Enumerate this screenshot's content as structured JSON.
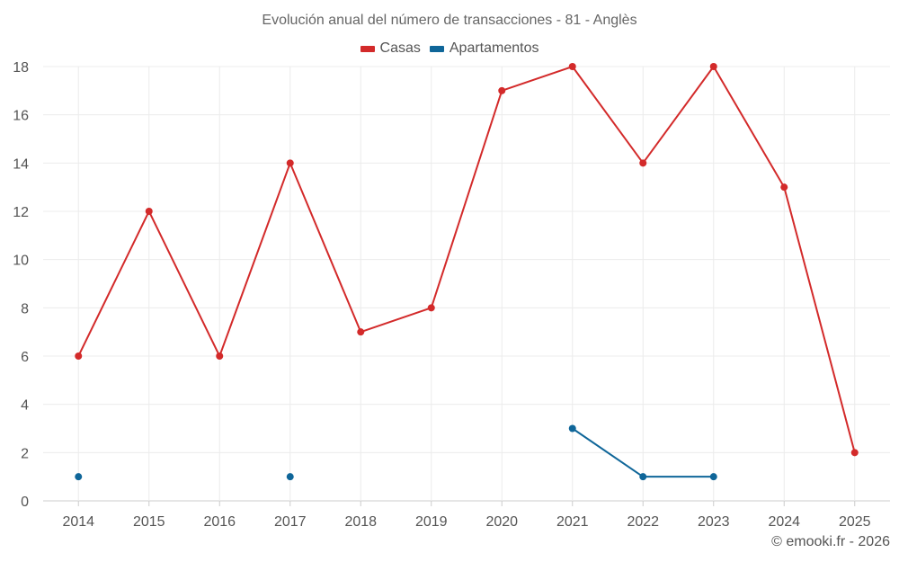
{
  "chart_data": {
    "type": "line",
    "title": "Evolución anual del número de transacciones - 81 - Anglès",
    "categories": [
      "2014",
      "2015",
      "2016",
      "2017",
      "2018",
      "2019",
      "2020",
      "2021",
      "2022",
      "2023",
      "2024",
      "2025"
    ],
    "series": [
      {
        "name": "Casas",
        "color": "#d32a2a",
        "values": [
          6,
          12,
          6,
          14,
          7,
          8,
          17,
          18,
          14,
          18,
          13,
          2
        ]
      },
      {
        "name": "Apartamentos",
        "color": "#0f6699",
        "values": [
          1,
          null,
          null,
          1,
          null,
          null,
          null,
          3,
          1,
          1,
          null,
          null
        ]
      }
    ],
    "ylim": [
      0,
      18
    ],
    "yticks": [
      0,
      2,
      4,
      6,
      8,
      10,
      12,
      14,
      16,
      18
    ],
    "grid": true,
    "legend_position": "top-center"
  },
  "footer": {
    "credit": "© emooki.fr - 2026"
  }
}
